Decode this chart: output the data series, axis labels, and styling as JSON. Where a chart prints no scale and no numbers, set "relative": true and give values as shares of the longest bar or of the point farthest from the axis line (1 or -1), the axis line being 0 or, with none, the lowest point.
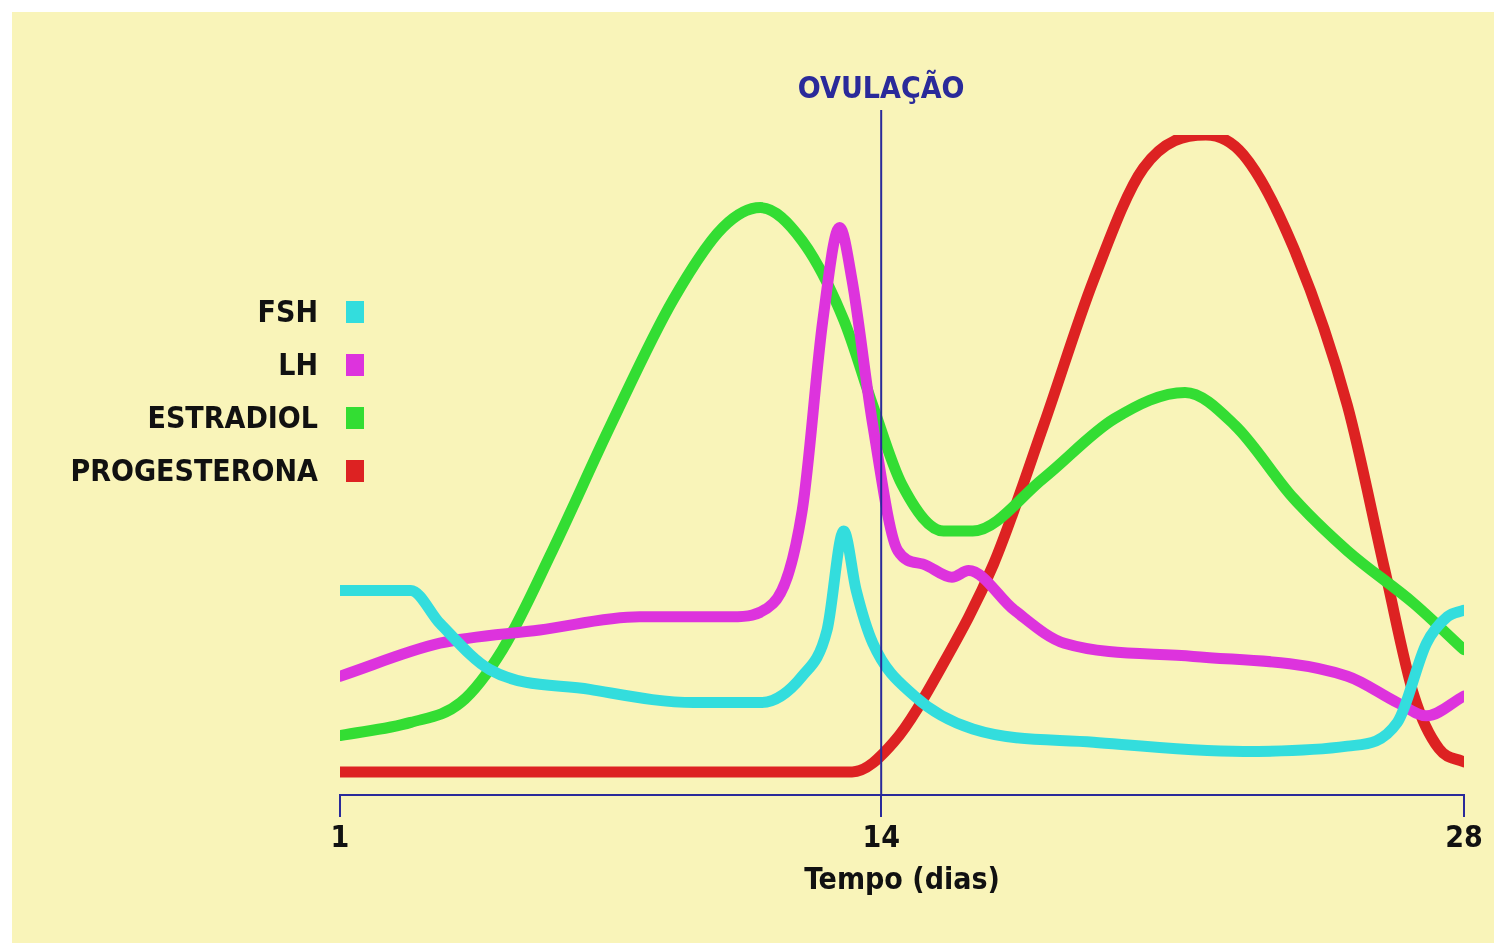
{
  "chart_data": {
    "type": "line",
    "relative": true,
    "xlabel": "Tempo (dias)",
    "xlim": [
      1,
      28
    ],
    "xticks": [
      1,
      14,
      28
    ],
    "legend": "left",
    "grid": false,
    "marker": "none",
    "line_style": "solid",
    "ref_lines": [
      {
        "axis": "x",
        "value": 14,
        "label": "OVULAÇÃO",
        "color": "#2a2a9a"
      }
    ],
    "series": [
      {
        "name": "FSH",
        "color": "#33dddd",
        "x": [
          1,
          2.7,
          3.4,
          4.6,
          7.0,
          9.5,
          11.1,
          12.1,
          12.7,
          13.1,
          13.4,
          13.8,
          14.8,
          16.2,
          19.1,
          22.7,
          25.2,
          26.4,
          27.1,
          27.6,
          28
        ],
        "values": [
          0.31,
          0.31,
          0.26,
          0.19,
          0.16,
          0.14,
          0.14,
          0.18,
          0.25,
          0.4,
          0.31,
          0.23,
          0.15,
          0.1,
          0.08,
          0.066,
          0.074,
          0.11,
          0.23,
          0.27,
          0.28
        ]
      },
      {
        "name": "LH",
        "color": "#dd33dd",
        "x": [
          1,
          3.4,
          5.8,
          8.2,
          10.4,
          11.4,
          12.1,
          12.6,
          13.0,
          13.3,
          13.8,
          14.4,
          15.0,
          15.7,
          16.1,
          17.2,
          18.4,
          21.5,
          25.2,
          26.4,
          27.1,
          28
        ],
        "values": [
          0.18,
          0.23,
          0.25,
          0.27,
          0.27,
          0.29,
          0.43,
          0.72,
          0.86,
          0.78,
          0.56,
          0.37,
          0.35,
          0.33,
          0.34,
          0.28,
          0.23,
          0.21,
          0.18,
          0.14,
          0.12,
          0.15
        ]
      },
      {
        "name": "ESTRADIOL",
        "color": "#33dd33",
        "x": [
          1,
          2.7,
          3.9,
          4.9,
          6.1,
          7.5,
          9.0,
          10.2,
          11.1,
          12.1,
          13.1,
          13.8,
          14.5,
          15.5,
          16.2,
          17.9,
          19.6,
          21.3,
          22.5,
          23.9,
          25.2,
          26.8,
          28
        ],
        "values": [
          0.09,
          0.11,
          0.14,
          0.22,
          0.37,
          0.56,
          0.75,
          0.86,
          0.89,
          0.84,
          0.72,
          0.59,
          0.47,
          0.4,
          0.4,
          0.48,
          0.57,
          0.61,
          0.56,
          0.45,
          0.37,
          0.29,
          0.22
        ]
      },
      {
        "name": "PROGESTERONA",
        "color": "#dd2222",
        "x": [
          1,
          13.3,
          14.3,
          15.5,
          16.7,
          17.9,
          19.1,
          20.3,
          21.8,
          22.7,
          23.9,
          25.2,
          26.1,
          26.8,
          27.4,
          28
        ],
        "values": [
          0.035,
          0.035,
          0.08,
          0.2,
          0.35,
          0.56,
          0.78,
          0.95,
          1,
          0.97,
          0.83,
          0.59,
          0.34,
          0.15,
          0.07,
          0.05
        ]
      }
    ]
  }
}
